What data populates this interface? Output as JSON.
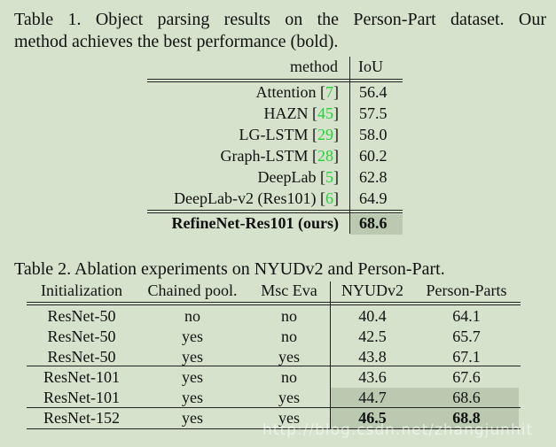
{
  "table1": {
    "caption_line1": "Table 1. Object parsing results on the Person-Part dataset.  Our",
    "caption_line2": "method achieves the best performance (bold).",
    "header": {
      "method": "method",
      "iou": "IoU"
    },
    "rows": [
      {
        "method": "Attention [",
        "ref": "7",
        "close": "]",
        "iou": "56.4"
      },
      {
        "method": "HAZN [",
        "ref": "45",
        "close": "]",
        "iou": "57.5"
      },
      {
        "method": "LG-LSTM [",
        "ref": "29",
        "close": "]",
        "iou": "58.0"
      },
      {
        "method": "Graph-LSTM [",
        "ref": "28",
        "close": "]",
        "iou": "60.2"
      },
      {
        "method": "DeepLab [",
        "ref": "5",
        "close": "]",
        "iou": "62.8"
      },
      {
        "method": "DeepLab-v2 (Res101) [",
        "ref": "6",
        "close": "]",
        "iou": "64.9"
      }
    ],
    "best": {
      "method": "RefineNet-Res101 (ours)",
      "iou": "68.6"
    }
  },
  "table2": {
    "caption": "Table 2. Ablation experiments on NYUDv2 and Person-Part.",
    "headers": [
      "Initialization",
      "Chained pool.",
      "Msc Eva",
      "NYUDv2",
      "Person-Parts"
    ],
    "rows": [
      [
        "ResNet-50",
        "no",
        "no",
        "40.4",
        "64.1"
      ],
      [
        "ResNet-50",
        "yes",
        "no",
        "42.5",
        "65.7"
      ],
      [
        "ResNet-50",
        "yes",
        "yes",
        "43.8",
        "67.1"
      ],
      [
        "ResNet-101",
        "yes",
        "no",
        "43.6",
        "67.6"
      ],
      [
        "ResNet-101",
        "yes",
        "yes",
        "44.7",
        "68.6"
      ],
      [
        "ResNet-152",
        "yes",
        "yes",
        "46.5",
        "68.8"
      ]
    ]
  },
  "watermark": "http://blog.csdn.net/zhangjunhit"
}
